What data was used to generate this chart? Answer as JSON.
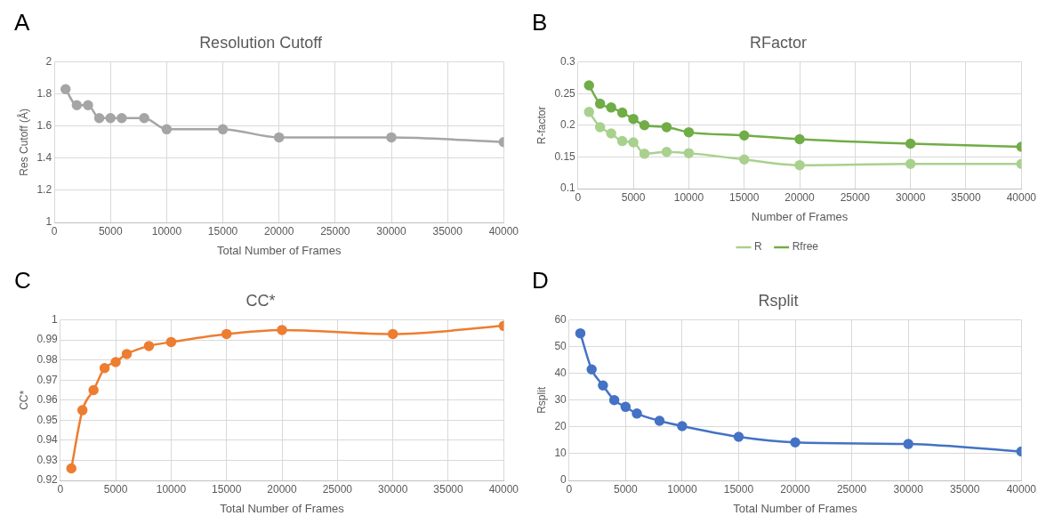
{
  "chart_data": [
    {
      "type": "line",
      "title": "Resolution Cutoff",
      "annotations": [
        "A"
      ],
      "xlabel": "Total Number of Frames",
      "ylabel": "Res Cutoff (Å)",
      "x": [
        1000,
        2000,
        3000,
        4000,
        5000,
        6000,
        8000,
        10000,
        15000,
        20000,
        30000,
        40000
      ],
      "series": [
        {
          "color": "#a5a5a5",
          "values": [
            1.83,
            1.73,
            1.73,
            1.65,
            1.65,
            1.65,
            1.65,
            1.58,
            1.58,
            1.53,
            1.53,
            1.5
          ]
        }
      ],
      "xlim": [
        0,
        40000
      ],
      "xticks": [
        0,
        5000,
        10000,
        15000,
        20000,
        25000,
        30000,
        35000,
        40000
      ],
      "ylim": [
        1,
        2
      ],
      "yticks": [
        1,
        1.2,
        1.4,
        1.6,
        1.8,
        2
      ],
      "grid": true,
      "marker": "circle",
      "legend": false
    },
    {
      "type": "line",
      "title": "RFactor",
      "annotations": [
        "B"
      ],
      "xlabel": "Number of Frames",
      "ylabel": "R-factor",
      "x": [
        1000,
        2000,
        3000,
        4000,
        5000,
        6000,
        8000,
        10000,
        15000,
        20000,
        30000,
        40000
      ],
      "series": [
        {
          "name": "R",
          "color": "#a9d18e",
          "values": [
            0.221,
            0.197,
            0.187,
            0.175,
            0.173,
            0.155,
            0.158,
            0.156,
            0.146,
            0.137,
            0.139,
            0.139
          ]
        },
        {
          "name": "Rfree",
          "color": "#70ad47",
          "values": [
            0.263,
            0.234,
            0.228,
            0.22,
            0.21,
            0.2,
            0.197,
            0.189,
            0.184,
            0.178,
            0.171,
            0.166
          ]
        }
      ],
      "xlim": [
        0,
        40000
      ],
      "xticks": [
        0,
        5000,
        10000,
        15000,
        20000,
        25000,
        30000,
        35000,
        40000
      ],
      "ylim": [
        0.1,
        0.3
      ],
      "yticks": [
        0.1,
        0.15,
        0.2,
        0.25,
        0.3
      ],
      "grid": true,
      "marker": "circle",
      "legend": "bottom"
    },
    {
      "type": "line",
      "title": "CC*",
      "annotations": [
        "C"
      ],
      "xlabel": "Total Number of Frames",
      "ylabel": "CC*",
      "x": [
        1000,
        2000,
        3000,
        4000,
        5000,
        6000,
        8000,
        10000,
        15000,
        20000,
        30000,
        40000
      ],
      "series": [
        {
          "color": "#ed7d31",
          "values": [
            0.926,
            0.955,
            0.965,
            0.976,
            0.979,
            0.983,
            0.987,
            0.989,
            0.993,
            0.995,
            0.993,
            0.997
          ]
        }
      ],
      "xlim": [
        0,
        40000
      ],
      "xticks": [
        0,
        5000,
        10000,
        15000,
        20000,
        25000,
        30000,
        35000,
        40000
      ],
      "ylim": [
        0.92,
        1
      ],
      "yticks": [
        0.92,
        0.93,
        0.94,
        0.95,
        0.96,
        0.97,
        0.98,
        0.99,
        1
      ],
      "grid": true,
      "marker": "circle",
      "legend": false
    },
    {
      "type": "line",
      "title": "Rsplit",
      "annotations": [
        "D"
      ],
      "xlabel": "Total Number of Frames",
      "ylabel": "Rsplit",
      "x": [
        1000,
        2000,
        3000,
        4000,
        5000,
        6000,
        8000,
        10000,
        15000,
        20000,
        30000,
        40000
      ],
      "series": [
        {
          "color": "#4472c4",
          "values": [
            55,
            41.5,
            35.5,
            30,
            27.5,
            25,
            22.3,
            20.3,
            16.3,
            14.2,
            13.6,
            10.8
          ]
        }
      ],
      "xlim": [
        0,
        40000
      ],
      "xticks": [
        0,
        5000,
        10000,
        15000,
        20000,
        25000,
        30000,
        35000,
        40000
      ],
      "ylim": [
        0,
        60
      ],
      "yticks": [
        0,
        10,
        20,
        30,
        40,
        50,
        60
      ],
      "grid": true,
      "marker": "circle",
      "legend": false
    }
  ]
}
